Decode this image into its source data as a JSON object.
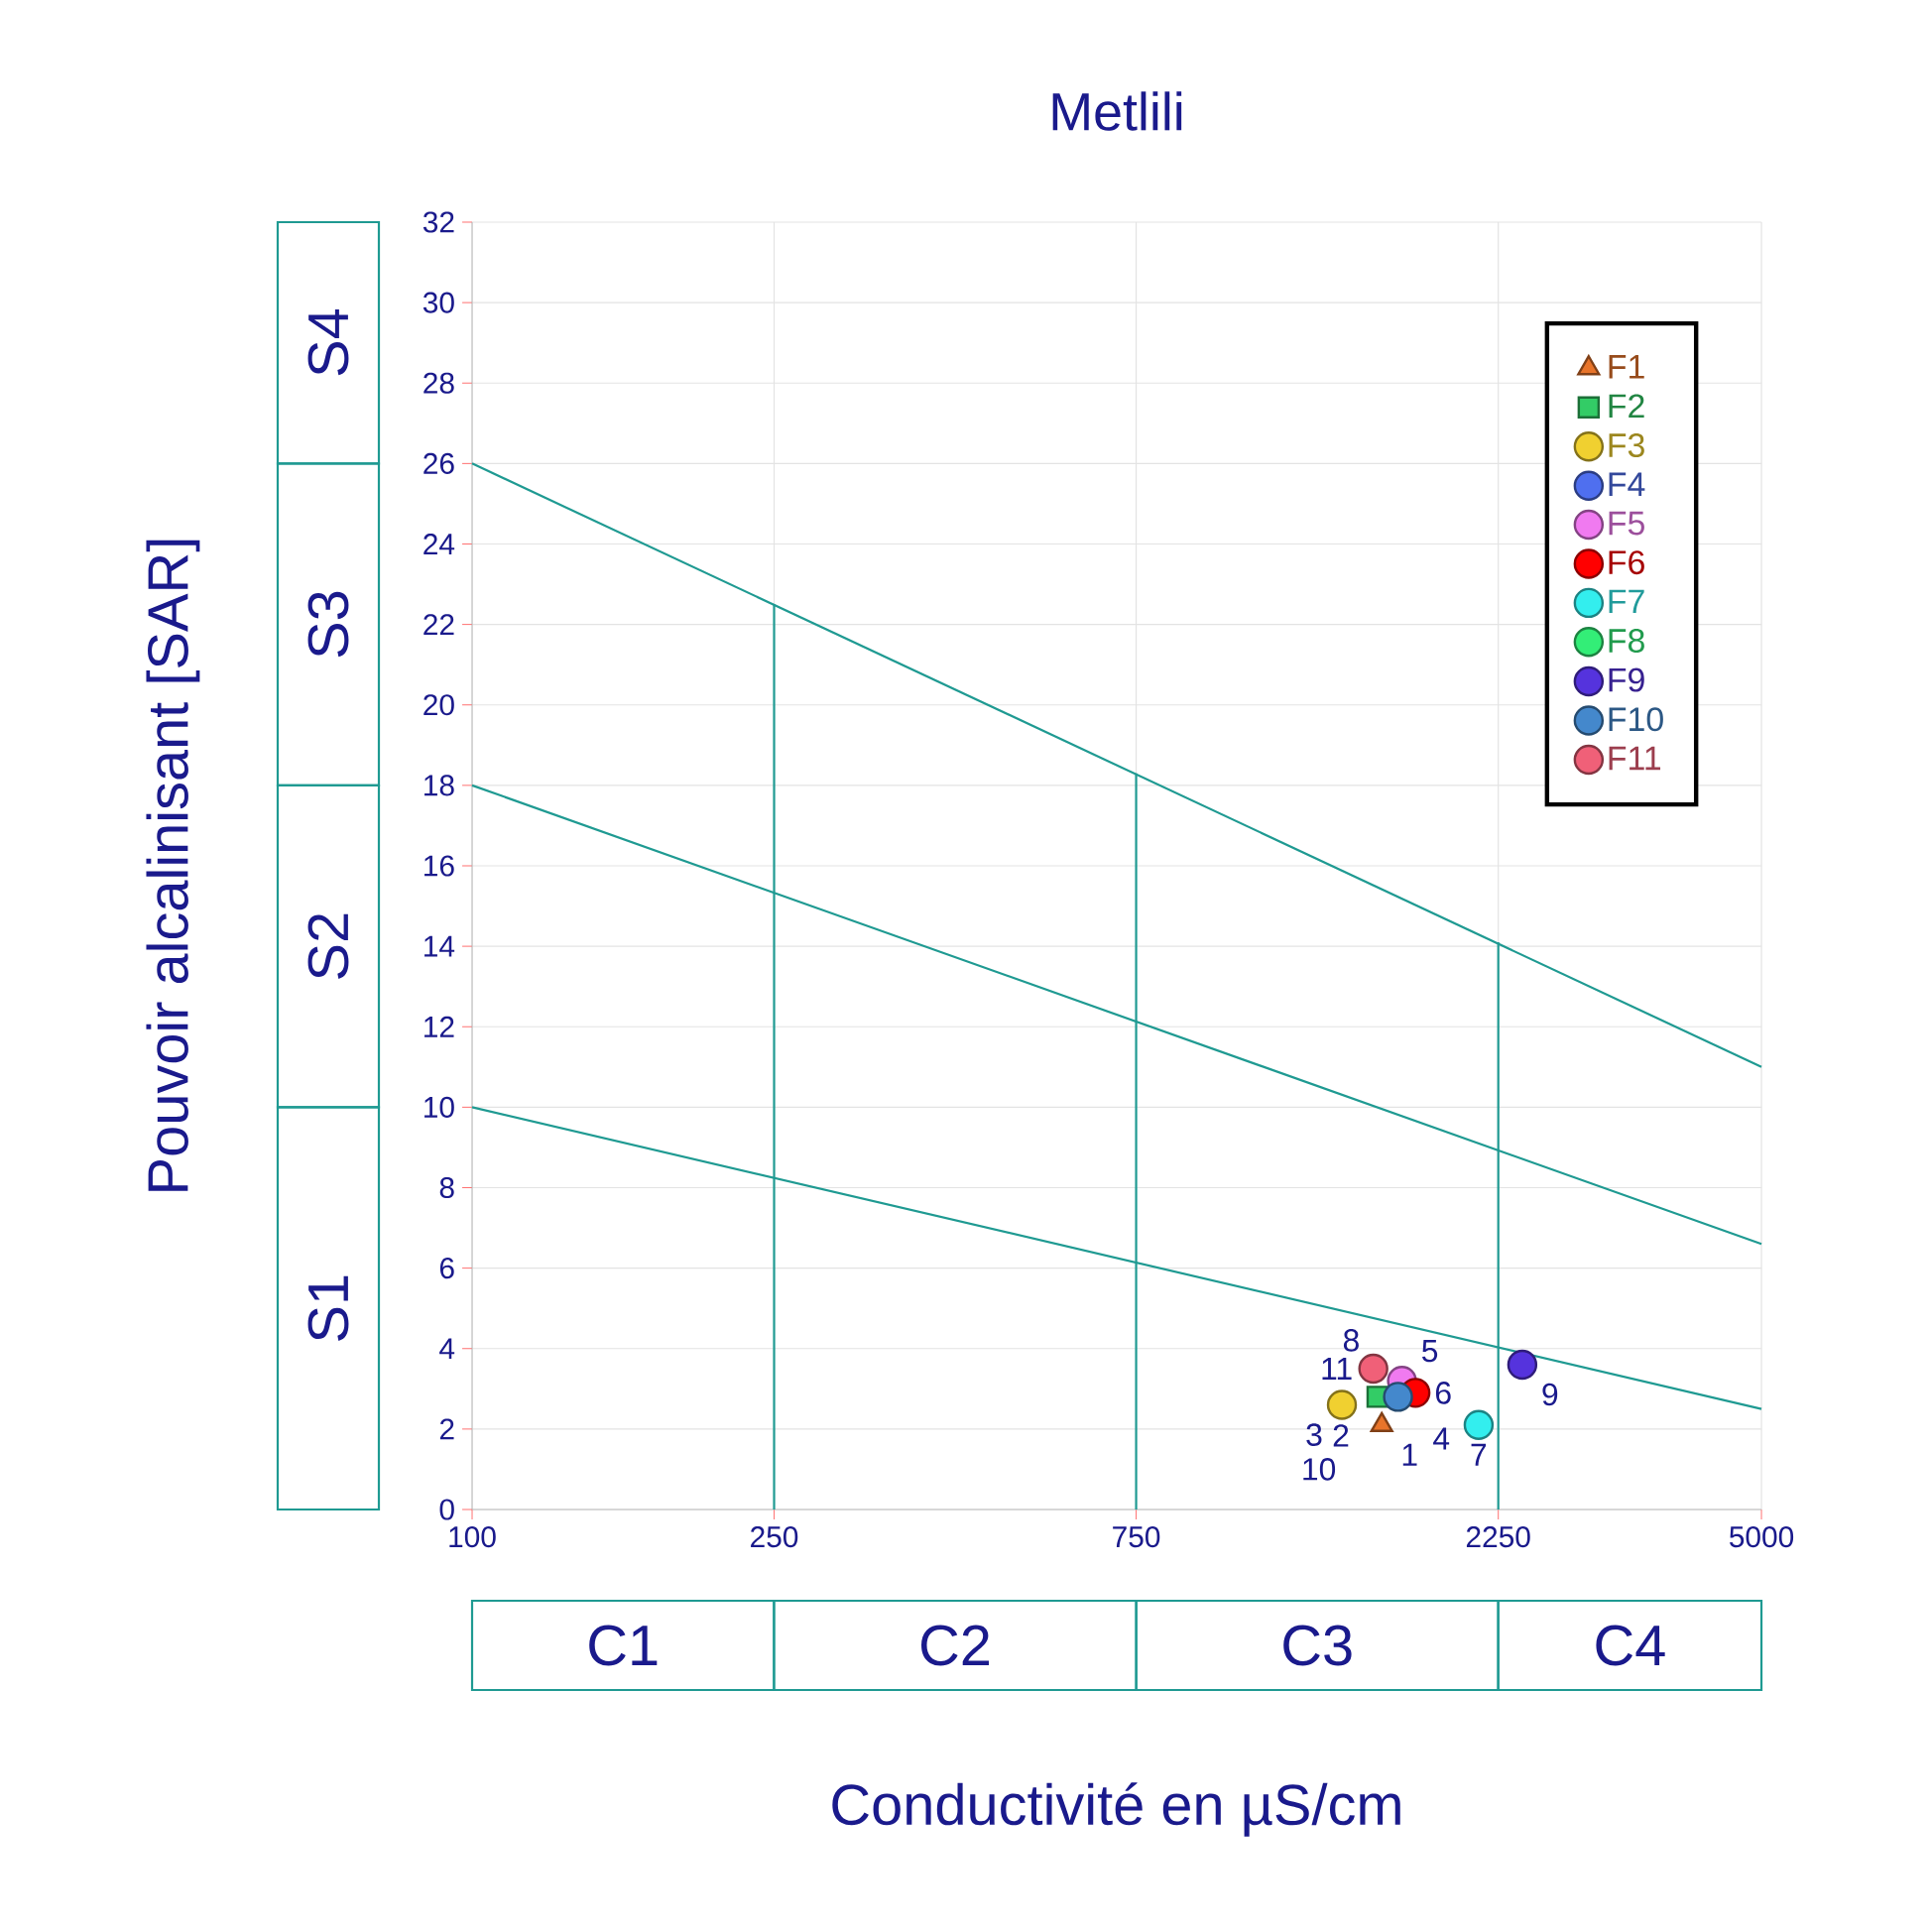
{
  "chart_data": {
    "type": "scatter",
    "title": "Metlili",
    "xlabel": "Conductivité en µS/cm",
    "ylabel": "Pouvoir alcalinisant [SAR]",
    "log": "x",
    "xlim": [
      100,
      5000
    ],
    "xticks": [
      100,
      250,
      750,
      2250,
      5000
    ],
    "ylim": [
      0,
      32
    ],
    "yticks": [
      0,
      2,
      4,
      6,
      8,
      10,
      12,
      14,
      16,
      18,
      20,
      22,
      24,
      26,
      28,
      30,
      32
    ],
    "grid": true,
    "legend": "top right",
    "series": [
      {
        "type": "line",
        "color": "#1f9a92",
        "marker": "none",
        "x": [
          100,
          5000
        ],
        "values": [
          26,
          11
        ]
      },
      {
        "type": "line",
        "color": "#1f9a92",
        "marker": "none",
        "x": [
          100,
          5000
        ],
        "values": [
          18,
          6.6
        ]
      },
      {
        "type": "line",
        "color": "#1f9a92",
        "marker": "none",
        "x": [
          100,
          5000
        ],
        "values": [
          10,
          2.5
        ]
      },
      {
        "type": "line",
        "color": "#1f9a92",
        "marker": "none",
        "x": [
          250,
          250
        ],
        "values": [
          0,
          22.5
        ]
      },
      {
        "type": "line",
        "color": "#1f9a92",
        "marker": "none",
        "x": [
          750,
          750
        ],
        "values": [
          0,
          18.3
        ]
      },
      {
        "type": "line",
        "color": "#1f9a92",
        "marker": "none",
        "x": [
          2250,
          2250
        ],
        "values": [
          0,
          14.1
        ]
      },
      {
        "name": "F1",
        "color": "#e8742a",
        "marker": "triangle",
        "x": [
          1580
        ],
        "values": [
          2.1
        ]
      },
      {
        "name": "F2",
        "color": "#33cc66",
        "marker": "square",
        "x": [
          1560
        ],
        "values": [
          2.8
        ]
      },
      {
        "name": "F3",
        "color": "#f0d030",
        "x": [
          1400
        ],
        "values": [
          2.6
        ]
      },
      {
        "name": "F4",
        "color": "#4f6fef",
        "x": [
          null
        ],
        "values": [
          null
        ]
      },
      {
        "name": "F5",
        "color": "#f07af0",
        "x": [
          1680
        ],
        "values": [
          3.2
        ]
      },
      {
        "name": "F6",
        "color": "#ff0000",
        "marker": "circle",
        "x": [
          1750
        ],
        "values": [
          2.9
        ]
      },
      {
        "name": "F7",
        "color": "#33eeee",
        "marker": "circle",
        "x": [
          2120
        ],
        "values": [
          2.1
        ]
      },
      {
        "name": "F8",
        "color": "#33ee77",
        "marker": "circle",
        "x": [
          null
        ],
        "values": [
          null
        ]
      },
      {
        "name": "F9",
        "color": "#5533dd",
        "marker": "circle",
        "x": [
          2420
        ],
        "values": [
          3.6
        ]
      },
      {
        "name": "F10",
        "color": "#4488cc",
        "marker": "circle",
        "x": [
          1660
        ],
        "values": [
          2.8
        ]
      },
      {
        "name": "F11",
        "color": "#f06078",
        "marker": "circle",
        "x": [
          1540
        ],
        "values": [
          3.5
        ]
      }
    ],
    "annotations": [
      {
        "text": "1",
        "x": 1580,
        "y": 2.1
      },
      {
        "text": "2",
        "x": 1560,
        "y": 2.8
      },
      {
        "text": "3",
        "x": 1400,
        "y": 2.6
      },
      {
        "text": "4",
        "x": 1740,
        "y": 2.5
      },
      {
        "text": "5",
        "x": 1680,
        "y": 3.2
      },
      {
        "text": "6",
        "x": 1750,
        "y": 2.9
      },
      {
        "text": "7",
        "x": 2120,
        "y": 2.1
      },
      {
        "text": "8",
        "x": 1720,
        "y": 2.7
      },
      {
        "text": "9",
        "x": 2420,
        "y": 3.6
      },
      {
        "text": "10",
        "x": 1660,
        "y": 2.8
      },
      {
        "text": "11",
        "x": 1540,
        "y": 3.5
      },
      "S1",
      "S2",
      "S3",
      "S4",
      "C1",
      "C2",
      "C3",
      "C4"
    ]
  }
}
